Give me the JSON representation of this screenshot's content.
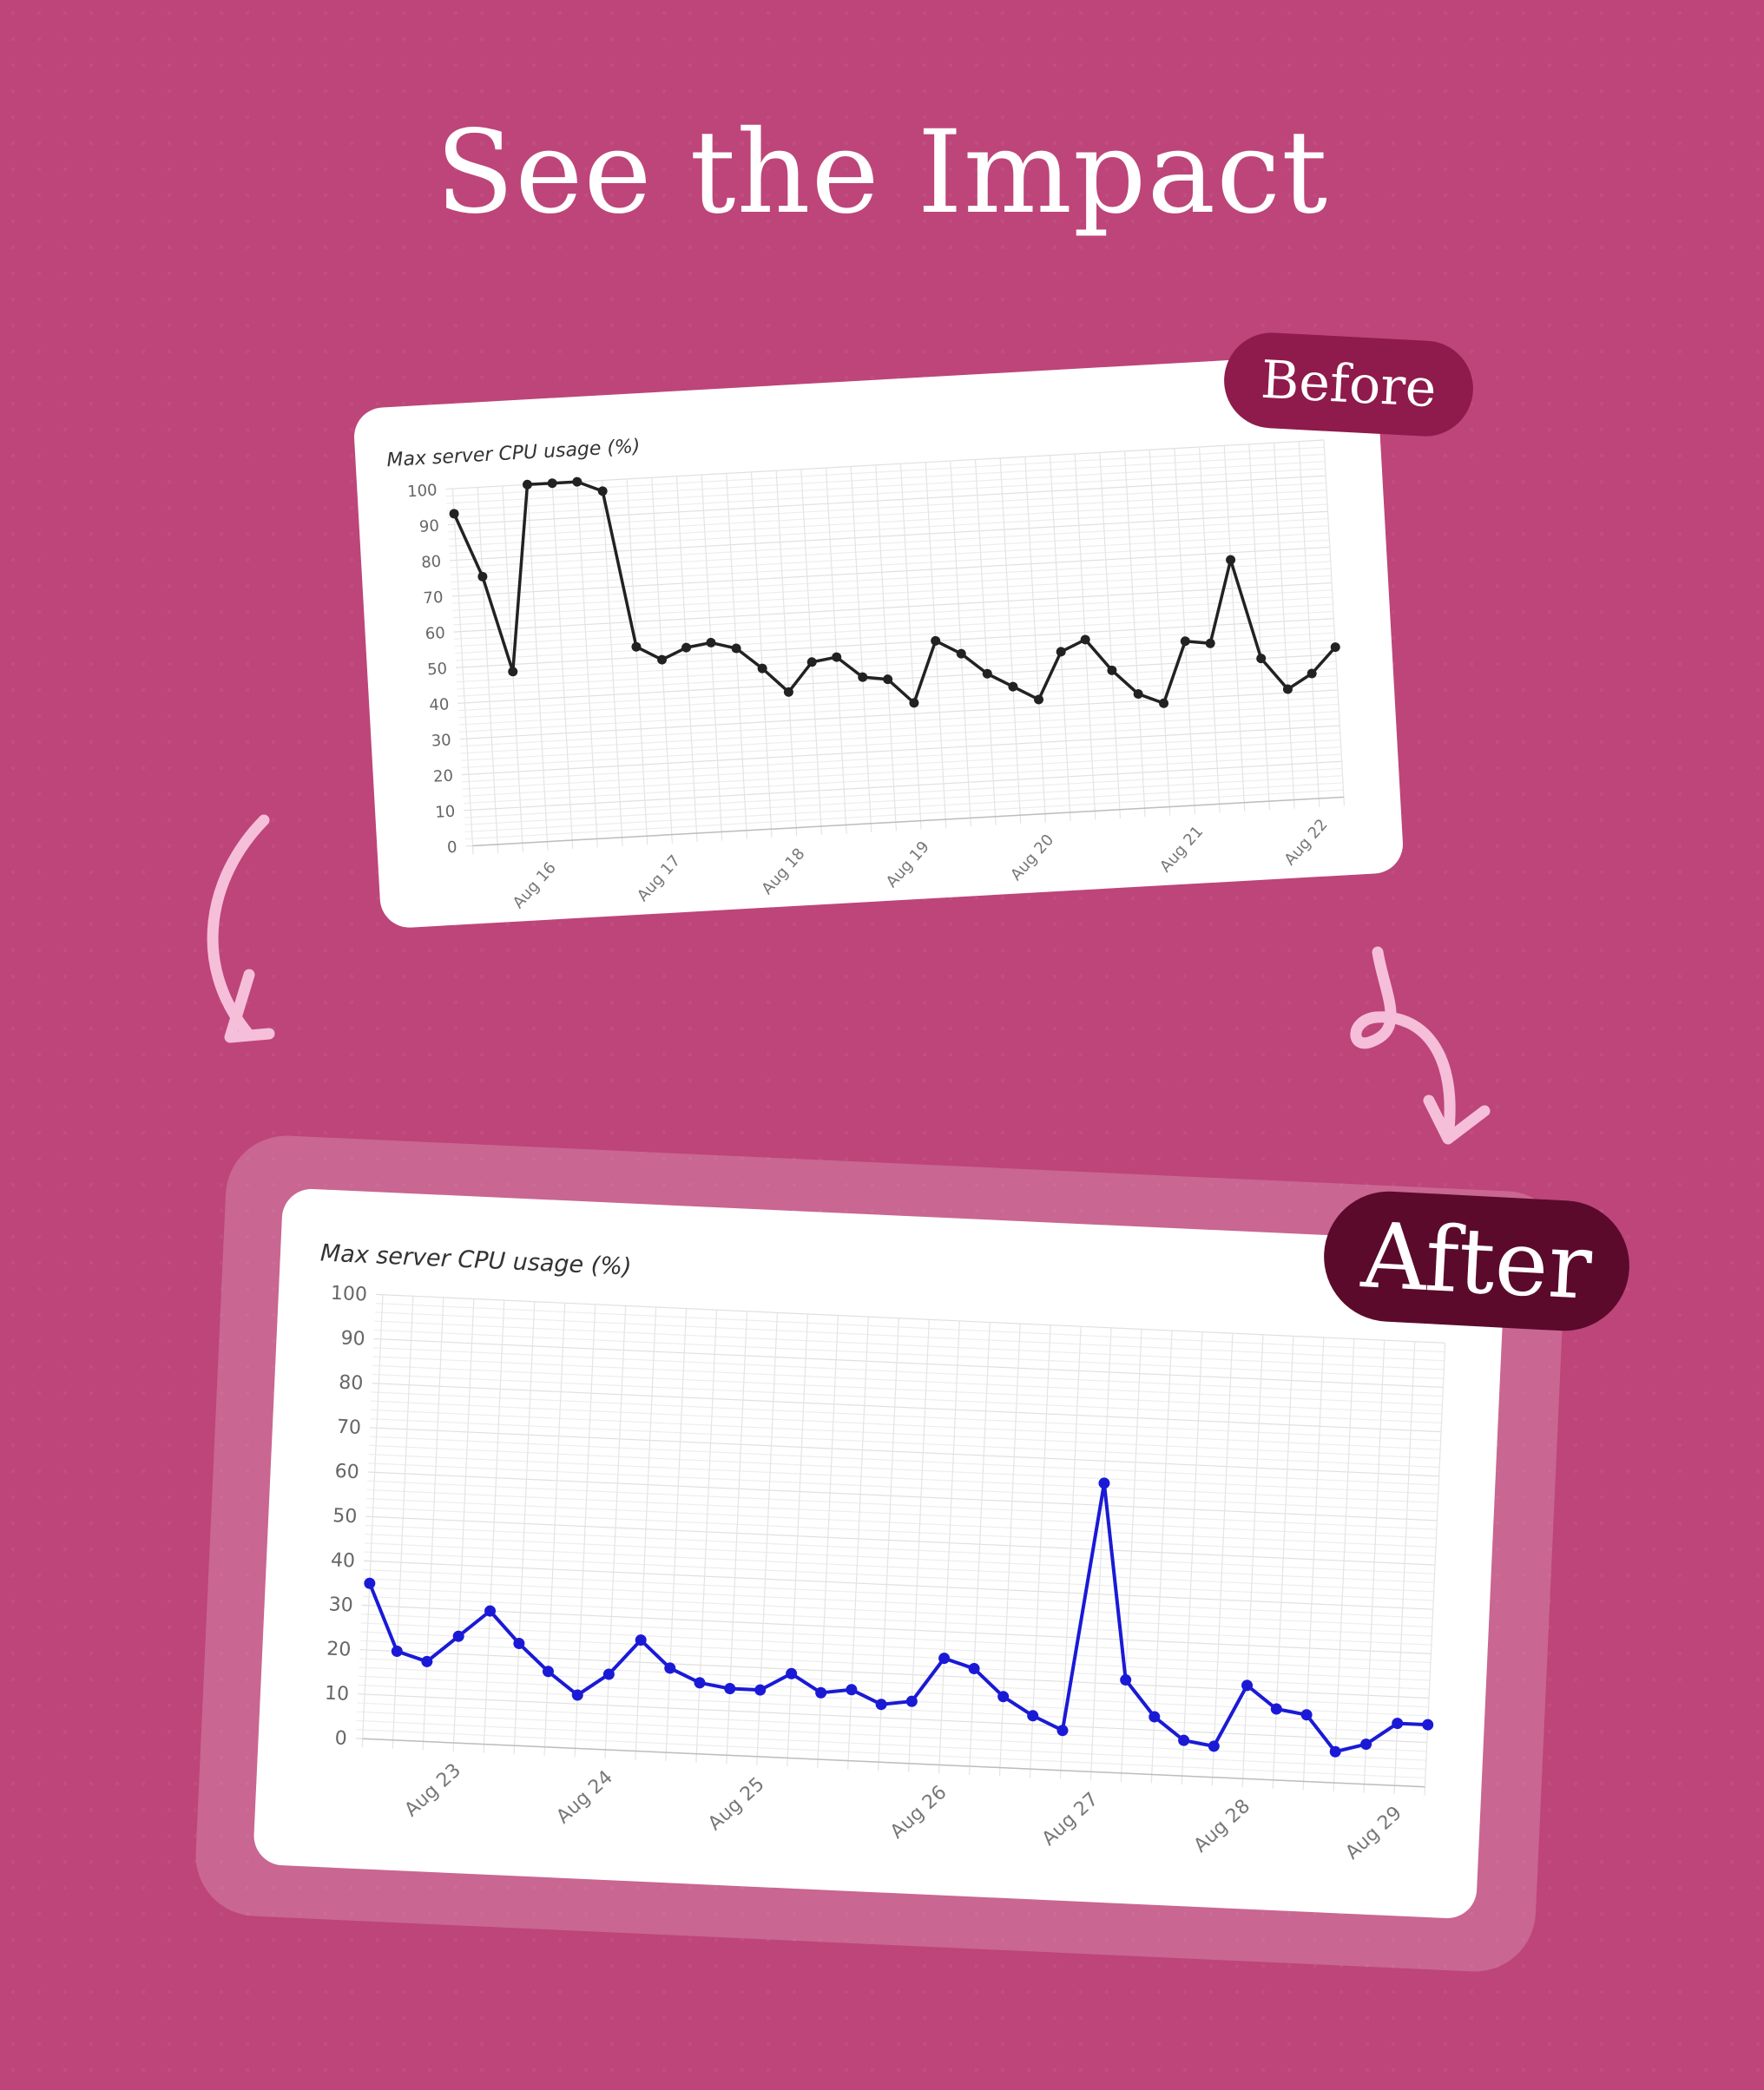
{
  "page": {
    "title": "See the Impact"
  },
  "badges": {
    "before": "Before",
    "after": "After"
  },
  "colors": {
    "background": "#bd4579",
    "before_line": "#222222",
    "after_line": "#1a1ad6",
    "before_badge": "#8f1a4c",
    "after_badge": "#5b0a2c",
    "arrows": "#f6bfd9"
  },
  "icons": [
    "curved-arrow-left-icon",
    "loop-arrow-right-icon"
  ],
  "chart_data": [
    {
      "type": "line",
      "title": "Max server CPU usage (%)",
      "xlabel": "",
      "ylabel": "",
      "ylim": [
        0,
        100
      ],
      "yticks": [
        0,
        10,
        20,
        30,
        40,
        50,
        60,
        70,
        80,
        90,
        100
      ],
      "grid": true,
      "xlim": [
        0,
        35
      ],
      "x_tick_labels": [
        {
          "x": 3,
          "label": "Aug 16"
        },
        {
          "x": 8,
          "label": "Aug 17"
        },
        {
          "x": 13,
          "label": "Aug 18"
        },
        {
          "x": 18,
          "label": "Aug 19"
        },
        {
          "x": 23,
          "label": "Aug 20"
        },
        {
          "x": 29,
          "label": "Aug 21"
        },
        {
          "x": 34,
          "label": "Aug 22"
        }
      ],
      "series": [
        {
          "color": "#222222",
          "x": [
            0,
            1,
            2,
            3,
            4,
            5,
            6,
            7,
            8,
            9,
            10,
            11,
            12,
            13,
            14,
            15,
            16,
            17,
            18,
            19,
            20,
            21,
            22,
            23,
            24,
            25,
            26,
            27,
            28,
            29,
            30,
            31,
            32,
            33,
            34,
            35
          ],
          "values": [
            93,
            75,
            48,
            100,
            100,
            100,
            97,
            53,
            49,
            52,
            53,
            51,
            45,
            38,
            46,
            47,
            41,
            40,
            33,
            50,
            46,
            40,
            36,
            32,
            45,
            48,
            39,
            32,
            29,
            46,
            45,
            68,
            40,
            31,
            35,
            42
          ]
        }
      ]
    },
    {
      "type": "line",
      "title": "Max server CPU usage (%)",
      "xlabel": "",
      "ylabel": "",
      "ylim": [
        0,
        100
      ],
      "yticks": [
        0,
        10,
        20,
        30,
        40,
        50,
        60,
        70,
        80,
        90,
        100
      ],
      "grid": true,
      "xlim": [
        0,
        35
      ],
      "x_tick_labels": [
        {
          "x": 3,
          "label": "Aug 23"
        },
        {
          "x": 8,
          "label": "Aug 24"
        },
        {
          "x": 13,
          "label": "Aug 25"
        },
        {
          "x": 19,
          "label": "Aug 26"
        },
        {
          "x": 24,
          "label": "Aug 27"
        },
        {
          "x": 29,
          "label": "Aug 28"
        },
        {
          "x": 34,
          "label": "Aug 29"
        }
      ],
      "series": [
        {
          "color": "#1a1ad6",
          "x": [
            0,
            1,
            2,
            3,
            4,
            5,
            6,
            7,
            8,
            9,
            10,
            11,
            12,
            13,
            14,
            15,
            16,
            17,
            18,
            19,
            20,
            21,
            22,
            23,
            24,
            25,
            26,
            27,
            28,
            29,
            30,
            31,
            32,
            33,
            34,
            35
          ],
          "values": [
            35,
            20,
            18,
            24,
            30,
            23,
            17,
            12,
            17,
            25,
            19,
            16,
            15,
            15,
            19,
            15,
            16,
            13,
            14,
            24,
            22,
            16,
            12,
            9,
            65,
            21,
            13,
            8,
            7,
            21,
            16,
            15,
            7,
            9,
            14,
            14
          ]
        }
      ]
    }
  ]
}
